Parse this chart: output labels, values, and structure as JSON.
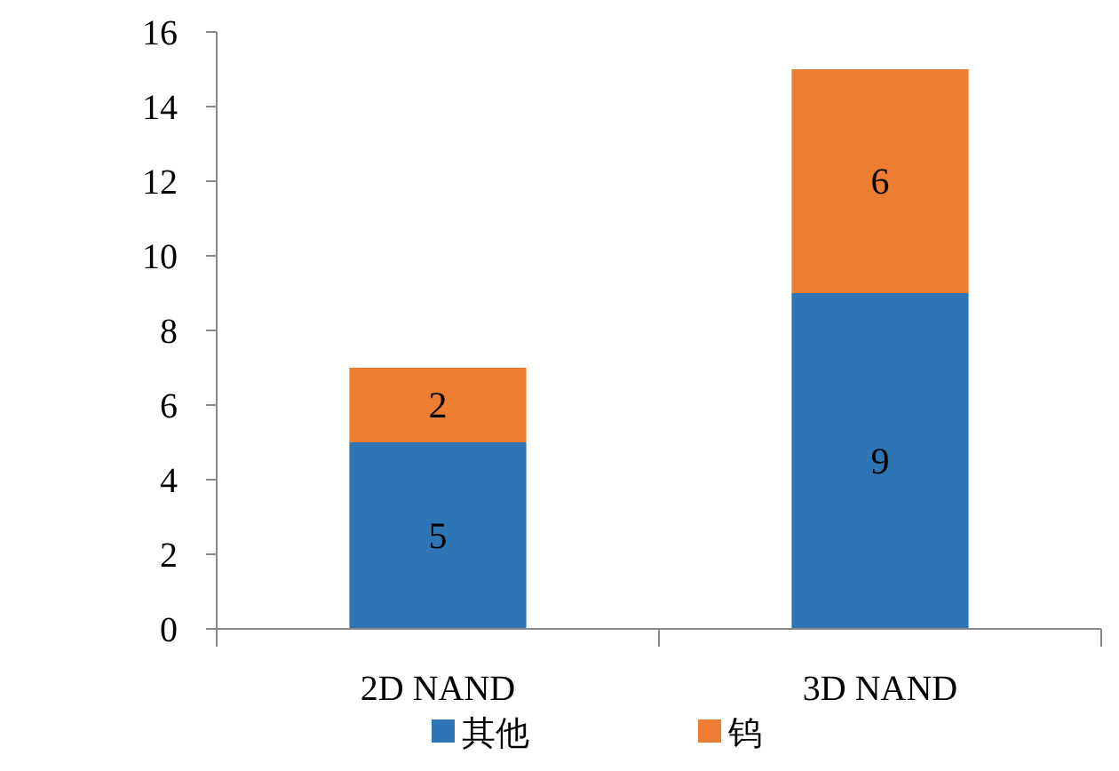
{
  "chart_data": {
    "type": "bar",
    "stacked": true,
    "categories": [
      "2D NAND",
      "3D NAND"
    ],
    "series": [
      {
        "name": "其他",
        "color": "#2e75b6",
        "values": [
          5,
          9
        ]
      },
      {
        "name": "钨",
        "color": "#ed7d31",
        "values": [
          2,
          6
        ]
      }
    ],
    "ylim": [
      0,
      16
    ],
    "yticks": [
      0,
      2,
      4,
      6,
      8,
      10,
      12,
      14,
      16
    ],
    "data_labels": true,
    "legend": "bottom",
    "grid": false
  }
}
